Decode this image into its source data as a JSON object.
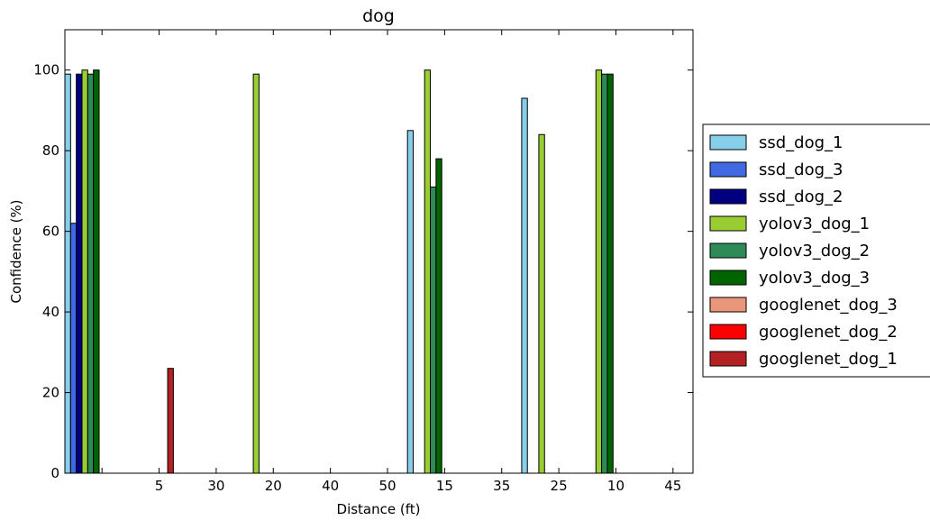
{
  "chart_data": {
    "type": "bar",
    "title": "dog",
    "xlabel": "Distance (ft)",
    "ylabel": "Confidence (%)",
    "ylim": [
      0,
      110
    ],
    "yticks": [
      0,
      20,
      40,
      60,
      80,
      100
    ],
    "categories": [
      "",
      "5",
      "30",
      "20",
      "40",
      "50",
      "15",
      "35",
      "25",
      "10",
      "45"
    ],
    "grid": false,
    "legend_position": "right",
    "series": [
      {
        "name": "ssd_dog_1",
        "color": "#87CEEB",
        "values": [
          99,
          0,
          0,
          0,
          0,
          0,
          85,
          0,
          93,
          0,
          0
        ]
      },
      {
        "name": "ssd_dog_3",
        "color": "#4169E1",
        "values": [
          62,
          0,
          0,
          0,
          0,
          0,
          0,
          0,
          0,
          0,
          0
        ]
      },
      {
        "name": "ssd_dog_2",
        "color": "#000080",
        "values": [
          99,
          0,
          0,
          0,
          0,
          0,
          0,
          0,
          0,
          0,
          0
        ]
      },
      {
        "name": "yolov3_dog_1",
        "color": "#9ACD32",
        "values": [
          100,
          0,
          0,
          99,
          0,
          0,
          100,
          0,
          84,
          100,
          0
        ]
      },
      {
        "name": "yolov3_dog_2",
        "color": "#2E8B57",
        "values": [
          99,
          0,
          0,
          0,
          0,
          0,
          71,
          0,
          0,
          99,
          0
        ]
      },
      {
        "name": "yolov3_dog_3",
        "color": "#006400",
        "values": [
          100,
          0,
          0,
          0,
          0,
          0,
          78,
          0,
          0,
          99,
          0
        ]
      },
      {
        "name": "googlenet_dog_3",
        "color": "#E9967A",
        "values": [
          0,
          0,
          0,
          0,
          0,
          0,
          0,
          0,
          0,
          0,
          0
        ]
      },
      {
        "name": "googlenet_dog_2",
        "color": "#FF0000",
        "values": [
          0,
          0,
          0,
          0,
          0,
          0,
          0,
          0,
          0,
          0,
          0
        ]
      },
      {
        "name": "googlenet_dog_1",
        "color": "#B22222",
        "values": [
          0,
          26,
          0,
          0,
          0,
          0,
          0,
          0,
          0,
          0,
          0
        ]
      }
    ]
  }
}
